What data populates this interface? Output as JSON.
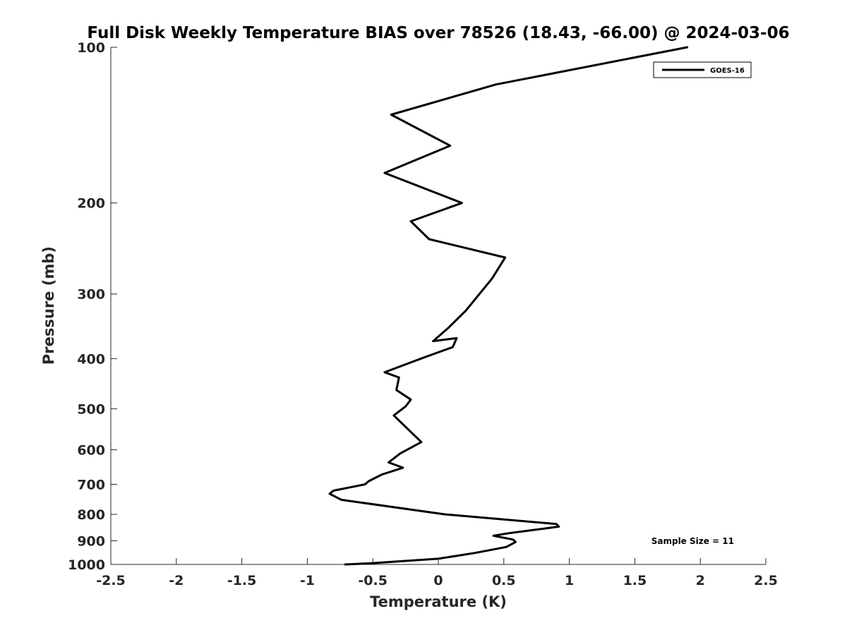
{
  "chart_data": {
    "type": "line",
    "title": "Full Disk Weekly Temperature BIAS over 78526 (18.43, -66.00) @ 2024-03-06",
    "xlabel": "Temperature (K)",
    "ylabel": "Pressure (mb)",
    "xlim": [
      -2.5,
      2.5
    ],
    "ylim": [
      100,
      1000
    ],
    "yscale": "log",
    "y_reversed": true,
    "grid": false,
    "legend_position": "top-right",
    "x_ticks": [
      "-2.5",
      "-2",
      "-1.5",
      "-1",
      "-0.5",
      "0",
      "0.5",
      "1",
      "1.5",
      "2",
      "2.5"
    ],
    "x_tick_values": [
      -2.5,
      -2,
      -1.5,
      -1,
      -0.5,
      0,
      0.5,
      1,
      1.5,
      2,
      2.5
    ],
    "y_ticks": [
      "100",
      "200",
      "300",
      "400",
      "500",
      "600",
      "700",
      "800",
      "900",
      "1000"
    ],
    "y_tick_values": [
      100,
      200,
      300,
      400,
      500,
      600,
      700,
      800,
      900,
      1000
    ],
    "annotation": "Sample Size = 11",
    "series": [
      {
        "name": "GOES-16",
        "color": "#000000",
        "x": [
          1.9,
          0.44,
          -0.36,
          0.09,
          -0.41,
          0.18,
          -0.21,
          -0.07,
          0.51,
          0.41,
          0.21,
          0.07,
          -0.04,
          0.14,
          0.11,
          -0.11,
          -0.41,
          -0.3,
          -0.32,
          -0.21,
          -0.25,
          -0.34,
          -0.24,
          -0.13,
          -0.29,
          -0.38,
          -0.27,
          -0.43,
          -0.53,
          -0.56,
          -0.8,
          -0.83,
          -0.74,
          0.05,
          0.9,
          0.92,
          0.54,
          0.42,
          0.57,
          0.59,
          0.52,
          0.28,
          0.0,
          -0.52,
          -0.71
        ],
        "y": [
          100,
          118,
          135,
          155,
          175,
          200,
          217,
          235,
          255,
          280,
          323,
          350,
          370,
          365,
          380,
          398,
          425,
          435,
          460,
          480,
          495,
          515,
          545,
          580,
          610,
          635,
          650,
          670,
          690,
          700,
          720,
          730,
          750,
          800,
          835,
          845,
          870,
          880,
          895,
          905,
          925,
          950,
          975,
          995,
          1000
        ]
      }
    ]
  }
}
